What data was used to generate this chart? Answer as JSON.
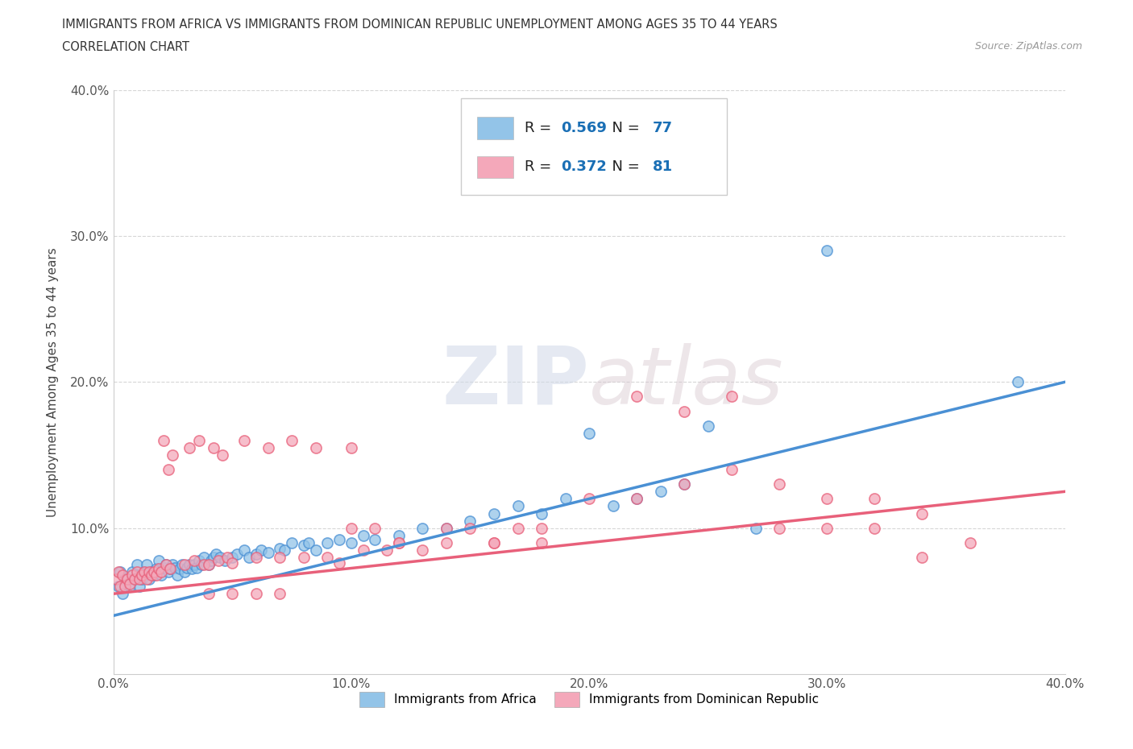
{
  "title_line1": "IMMIGRANTS FROM AFRICA VS IMMIGRANTS FROM DOMINICAN REPUBLIC UNEMPLOYMENT AMONG AGES 35 TO 44 YEARS",
  "title_line2": "CORRELATION CHART",
  "source_text": "Source: ZipAtlas.com",
  "ylabel": "Unemployment Among Ages 35 to 44 years",
  "xlim": [
    0.0,
    0.4
  ],
  "ylim": [
    0.0,
    0.4
  ],
  "xtick_labels": [
    "0.0%",
    "10.0%",
    "20.0%",
    "30.0%",
    "40.0%"
  ],
  "xtick_vals": [
    0.0,
    0.1,
    0.2,
    0.3,
    0.4
  ],
  "ytick_labels": [
    "10.0%",
    "20.0%",
    "30.0%",
    "40.0%"
  ],
  "ytick_vals": [
    0.1,
    0.2,
    0.3,
    0.4
  ],
  "africa_color": "#93c4e8",
  "africa_line_color": "#4a90d4",
  "dr_color": "#f4a8ba",
  "dr_line_color": "#e8607a",
  "africa_R": 0.569,
  "africa_N": 77,
  "dr_R": 0.372,
  "dr_N": 81,
  "legend_R_color": "#1a6fb5",
  "watermark_zip": "ZIP",
  "watermark_atlas": "atlas",
  "africa_line_x0": 0.0,
  "africa_line_y0": 0.04,
  "africa_line_x1": 0.4,
  "africa_line_y1": 0.2,
  "dr_line_x0": 0.0,
  "dr_line_y0": 0.055,
  "dr_line_x1": 0.4,
  "dr_line_y1": 0.125,
  "africa_scatter_x": [
    0.002,
    0.003,
    0.004,
    0.005,
    0.007,
    0.008,
    0.009,
    0.01,
    0.011,
    0.012,
    0.013,
    0.014,
    0.015,
    0.016,
    0.017,
    0.018,
    0.019,
    0.02,
    0.021,
    0.022,
    0.023,
    0.024,
    0.025,
    0.026,
    0.027,
    0.028,
    0.029,
    0.03,
    0.031,
    0.032,
    0.033,
    0.034,
    0.035,
    0.036,
    0.037,
    0.038,
    0.04,
    0.041,
    0.042,
    0.043,
    0.045,
    0.047,
    0.05,
    0.052,
    0.055,
    0.057,
    0.06,
    0.062,
    0.065,
    0.07,
    0.072,
    0.075,
    0.08,
    0.082,
    0.085,
    0.09,
    0.095,
    0.1,
    0.105,
    0.11,
    0.12,
    0.13,
    0.14,
    0.15,
    0.16,
    0.17,
    0.18,
    0.19,
    0.2,
    0.21,
    0.22,
    0.23,
    0.24,
    0.25,
    0.27,
    0.3,
    0.38
  ],
  "africa_scatter_y": [
    0.06,
    0.07,
    0.055,
    0.065,
    0.06,
    0.07,
    0.065,
    0.075,
    0.06,
    0.065,
    0.07,
    0.075,
    0.065,
    0.07,
    0.068,
    0.072,
    0.078,
    0.068,
    0.073,
    0.075,
    0.07,
    0.072,
    0.075,
    0.073,
    0.068,
    0.072,
    0.075,
    0.07,
    0.073,
    0.075,
    0.072,
    0.075,
    0.073,
    0.078,
    0.075,
    0.08,
    0.075,
    0.078,
    0.08,
    0.082,
    0.08,
    0.078,
    0.08,
    0.082,
    0.085,
    0.08,
    0.082,
    0.085,
    0.083,
    0.086,
    0.085,
    0.09,
    0.088,
    0.09,
    0.085,
    0.09,
    0.092,
    0.09,
    0.095,
    0.092,
    0.095,
    0.1,
    0.1,
    0.105,
    0.11,
    0.115,
    0.11,
    0.12,
    0.165,
    0.115,
    0.12,
    0.125,
    0.13,
    0.17,
    0.1,
    0.29,
    0.2
  ],
  "dr_scatter_x": [
    0.001,
    0.002,
    0.003,
    0.004,
    0.005,
    0.006,
    0.007,
    0.008,
    0.009,
    0.01,
    0.011,
    0.012,
    0.013,
    0.014,
    0.015,
    0.016,
    0.017,
    0.018,
    0.019,
    0.02,
    0.021,
    0.022,
    0.023,
    0.024,
    0.025,
    0.03,
    0.032,
    0.034,
    0.036,
    0.038,
    0.04,
    0.042,
    0.044,
    0.046,
    0.048,
    0.05,
    0.055,
    0.06,
    0.065,
    0.07,
    0.075,
    0.08,
    0.085,
    0.09,
    0.095,
    0.1,
    0.105,
    0.11,
    0.115,
    0.12,
    0.13,
    0.14,
    0.15,
    0.16,
    0.17,
    0.18,
    0.2,
    0.22,
    0.24,
    0.26,
    0.28,
    0.3,
    0.32,
    0.34,
    0.22,
    0.24,
    0.26,
    0.28,
    0.1,
    0.12,
    0.14,
    0.16,
    0.18,
    0.04,
    0.05,
    0.06,
    0.07,
    0.3,
    0.32,
    0.34,
    0.36
  ],
  "dr_scatter_y": [
    0.065,
    0.07,
    0.06,
    0.068,
    0.06,
    0.065,
    0.062,
    0.068,
    0.065,
    0.07,
    0.065,
    0.068,
    0.07,
    0.065,
    0.07,
    0.068,
    0.07,
    0.068,
    0.072,
    0.07,
    0.16,
    0.075,
    0.14,
    0.072,
    0.15,
    0.075,
    0.155,
    0.078,
    0.16,
    0.075,
    0.075,
    0.155,
    0.078,
    0.15,
    0.08,
    0.076,
    0.16,
    0.08,
    0.155,
    0.08,
    0.16,
    0.08,
    0.155,
    0.08,
    0.076,
    0.155,
    0.085,
    0.1,
    0.085,
    0.09,
    0.085,
    0.09,
    0.1,
    0.09,
    0.1,
    0.09,
    0.12,
    0.12,
    0.13,
    0.14,
    0.13,
    0.1,
    0.1,
    0.11,
    0.19,
    0.18,
    0.19,
    0.1,
    0.1,
    0.09,
    0.1,
    0.09,
    0.1,
    0.055,
    0.055,
    0.055,
    0.055,
    0.12,
    0.12,
    0.08,
    0.09
  ]
}
